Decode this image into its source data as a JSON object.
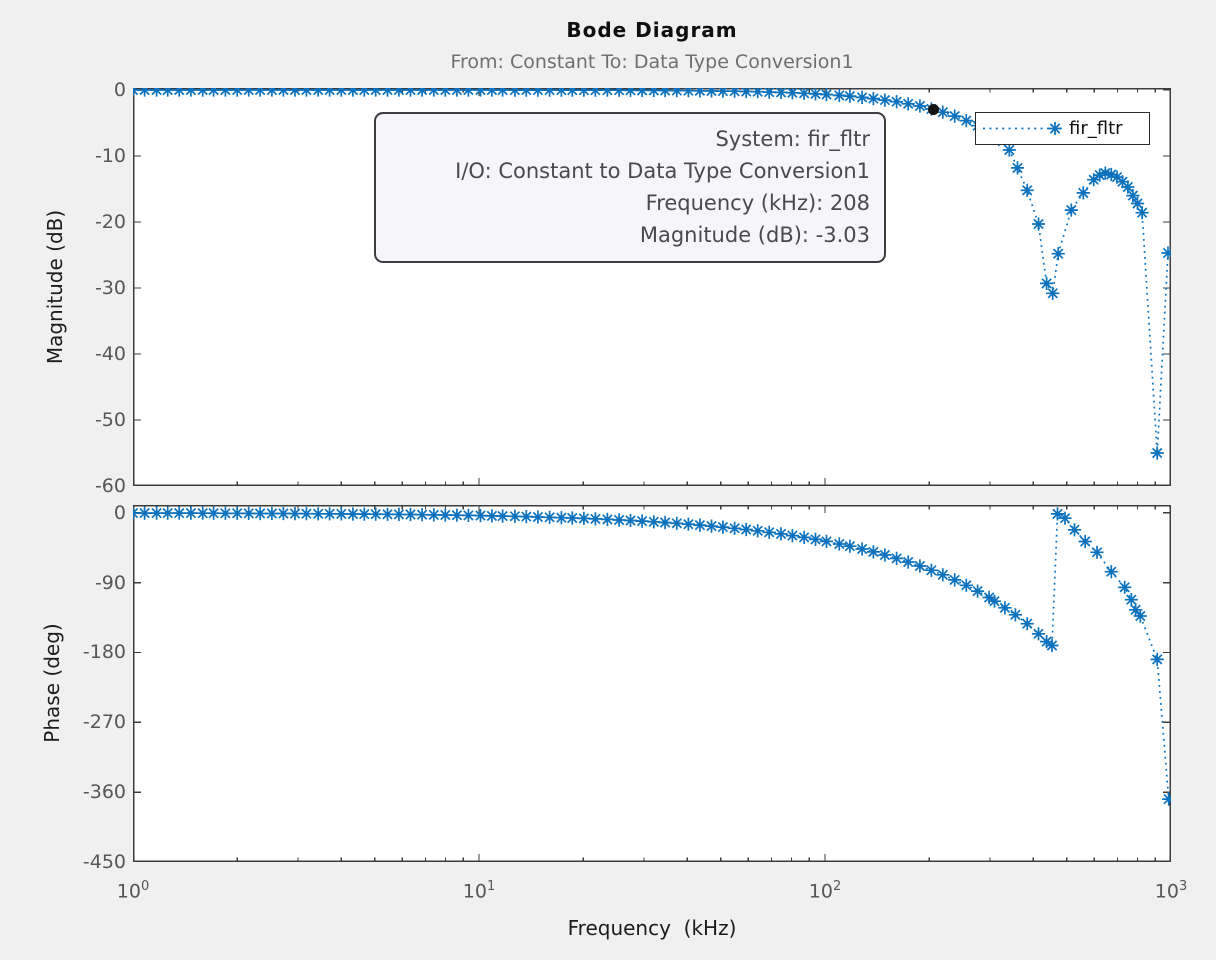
{
  "figure": {
    "background_color": "#f0f0f0",
    "accent_blue": "#0d72bd",
    "axes_edge_color": "#3c3c3c",
    "tick_label_color": "#565656"
  },
  "legend": {
    "label": "fir_fltr"
  },
  "datatip": {
    "lines": [
      "System: fir_fltr",
      "I/O: Constant to Data Type Conversion1",
      "Frequency (kHz): 208",
      "Magnitude (dB): -3.03"
    ]
  },
  "xaxis_ticks": [
    {
      "base": "10",
      "exp": "0"
    },
    {
      "base": "10",
      "exp": "1"
    },
    {
      "base": "10",
      "exp": "2"
    },
    {
      "base": "10",
      "exp": "3"
    }
  ],
  "chart_data": {
    "type": "line",
    "title": "Bode Diagram",
    "subtitle": "From: Constant  To: Data Type Conversion1",
    "xlabel": "Frequency  (kHz)",
    "xscale": "log",
    "xlim": [
      1,
      1000
    ],
    "grid": false,
    "legend_position": "top-right-inside",
    "series_name": "fir_fltr",
    "line_style": "dotted",
    "marker": "asterisk",
    "color": "#0d72bd",
    "subplots": [
      {
        "name": "magnitude",
        "ylabel": "Magnitude (dB)",
        "ylim": [
          -60,
          0.3
        ],
        "yticks": [
          0,
          -10,
          -20,
          -30,
          -40,
          -50,
          -60
        ]
      },
      {
        "name": "phase",
        "ylabel": "Phase (deg)",
        "ylim": [
          -450,
          10
        ],
        "yticks": [
          0,
          -90,
          -180,
          -270,
          -360,
          -450
        ]
      }
    ],
    "freq_khz_dense": [
      1.0,
      1.08,
      1.17,
      1.26,
      1.36,
      1.47,
      1.59,
      1.71,
      1.85,
      2.0,
      2.16,
      2.33,
      2.52,
      2.72,
      2.94,
      3.17,
      3.43,
      3.7,
      4.0,
      4.32,
      4.66,
      5.03,
      5.44,
      5.87,
      6.34,
      6.85,
      7.4,
      7.99,
      8.63,
      9.32,
      10.1,
      10.9,
      11.7,
      12.7,
      13.7,
      14.8,
      16.0,
      17.3,
      18.6,
      20.1,
      21.7,
      23.5,
      25.4,
      27.4,
      29.6,
      32.0,
      34.5,
      37.3,
      40.3,
      43.5,
      47.0,
      50.7,
      54.8,
      59.2,
      63.9,
      69.0,
      74.6,
      80.5,
      87.0,
      93.9,
      101,
      110,
      118,
      128,
      138,
      149,
      161,
      174,
      188,
      203,
      219,
      237,
      256,
      276,
      298
    ],
    "mag_db_dense": [
      0,
      0,
      0,
      0,
      0,
      0,
      0,
      0,
      0,
      0,
      0,
      0,
      0,
      0,
      0,
      0,
      0,
      0,
      0,
      0,
      0,
      -0.01,
      -0.01,
      -0.01,
      -0.01,
      -0.01,
      -0.01,
      -0.01,
      -0.01,
      -0.01,
      -0.01,
      -0.01,
      -0.01,
      -0.02,
      -0.02,
      -0.02,
      -0.02,
      -0.02,
      -0.03,
      -0.03,
      -0.03,
      -0.04,
      -0.04,
      -0.05,
      -0.06,
      -0.07,
      -0.08,
      -0.09,
      -0.11,
      -0.12,
      -0.14,
      -0.17,
      -0.19,
      -0.23,
      -0.26,
      -0.32,
      -0.36,
      -0.43,
      -0.5,
      -0.59,
      -0.68,
      -0.82,
      -0.93,
      -1.12,
      -1.3,
      -1.53,
      -1.78,
      -2.1,
      -2.42,
      -2.88,
      -3.37,
      -3.96,
      -4.64,
      -5.41,
      -6.33
    ],
    "phase_deg_dense": [
      -0.4,
      -0.4,
      -0.4,
      -0.5,
      -0.5,
      -0.5,
      -0.6,
      -0.6,
      -0.7,
      -0.7,
      -0.8,
      -0.9,
      -0.9,
      -1.0,
      -1.1,
      -1.2,
      -1.3,
      -1.4,
      -1.5,
      -1.6,
      -1.7,
      -1.8,
      -2.0,
      -2.1,
      -2.3,
      -2.5,
      -2.7,
      -2.9,
      -3.2,
      -3.4,
      -3.7,
      -4.0,
      -4.3,
      -4.6,
      -5.0,
      -5.4,
      -5.8,
      -6.3,
      -6.8,
      -7.3,
      -7.9,
      -8.6,
      -9.3,
      -10.0,
      -10.8,
      -11.7,
      -12.6,
      -13.6,
      -14.7,
      -15.9,
      -17.2,
      -18.5,
      -20.0,
      -21.6,
      -23.3,
      -25.2,
      -27.2,
      -29.4,
      -31.8,
      -34.3,
      -36.9,
      -40.2,
      -43.1,
      -46.7,
      -50.4,
      -54.4,
      -58.8,
      -63.5,
      -68.6,
      -74.1,
      -79.9,
      -86.5,
      -93.5,
      -100.9,
      -109.2
    ],
    "mag_tail": [
      [
        318,
        -7.5
      ],
      [
        341,
        -9.1
      ],
      [
        360,
        -11.8
      ],
      [
        384,
        -15.2
      ],
      [
        414,
        -20.3
      ],
      [
        437,
        -29.3
      ],
      [
        455,
        -30.8
      ],
      [
        472,
        -24.8
      ],
      [
        515,
        -18.2
      ],
      [
        558,
        -15.6
      ],
      [
        598,
        -13.6
      ],
      [
        622,
        -12.9
      ],
      [
        646,
        -12.6
      ],
      [
        672,
        -12.8
      ],
      [
        698,
        -13.2
      ],
      [
        724,
        -13.9
      ],
      [
        750,
        -14.7
      ],
      [
        776,
        -16.0
      ],
      [
        800,
        -17.2
      ],
      [
        825,
        -18.6
      ],
      [
        912,
        -55.0
      ],
      [
        980,
        -24.7
      ]
    ],
    "phase_tail": [
      [
        309,
        -114
      ],
      [
        331,
        -122.5
      ],
      [
        355,
        -131.5
      ],
      [
        384,
        -143
      ],
      [
        414,
        -156
      ],
      [
        437,
        -166
      ],
      [
        453,
        -171
      ],
      [
        470,
        -1.5
      ],
      [
        494,
        -7
      ],
      [
        526,
        -22
      ],
      [
        565,
        -37
      ],
      [
        611,
        -51
      ],
      [
        672,
        -76
      ],
      [
        735,
        -96
      ],
      [
        768,
        -112
      ],
      [
        790,
        -125
      ],
      [
        815,
        -133
      ],
      [
        912,
        -189
      ],
      [
        985,
        -369
      ]
    ],
    "selected_point": {
      "freq_khz": 208,
      "mag_db": -3.03
    }
  }
}
